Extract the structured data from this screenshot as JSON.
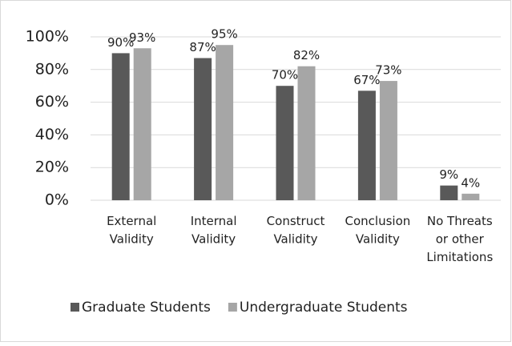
{
  "chart_data": {
    "type": "bar",
    "categories": [
      "External\nValidity",
      "Internal\nValidity",
      "Construct\nValidity",
      "Conclusion\nValidity",
      "No Threats\nor other\nLimitations"
    ],
    "series": [
      {
        "name": "Graduate Students",
        "color": "#595959",
        "values": [
          90,
          87,
          70,
          67,
          9
        ],
        "value_labels": [
          "90%",
          "87%",
          "70%",
          "67%",
          "9%"
        ]
      },
      {
        "name": "Undergraduate Students",
        "color": "#a6a6a6",
        "values": [
          93,
          95,
          82,
          73,
          4
        ],
        "value_labels": [
          "93%",
          "95%",
          "82%",
          "73%",
          "4%"
        ]
      }
    ],
    "ylim": [
      0,
      100
    ],
    "yticks": [
      {
        "value": 0,
        "label": "0%"
      },
      {
        "value": 20,
        "label": "20%"
      },
      {
        "value": 40,
        "label": "40%"
      },
      {
        "value": 60,
        "label": "60%"
      },
      {
        "value": 80,
        "label": "80%"
      },
      {
        "value": 100,
        "label": "100%"
      }
    ],
    "grid": true,
    "legend": "bottom"
  }
}
